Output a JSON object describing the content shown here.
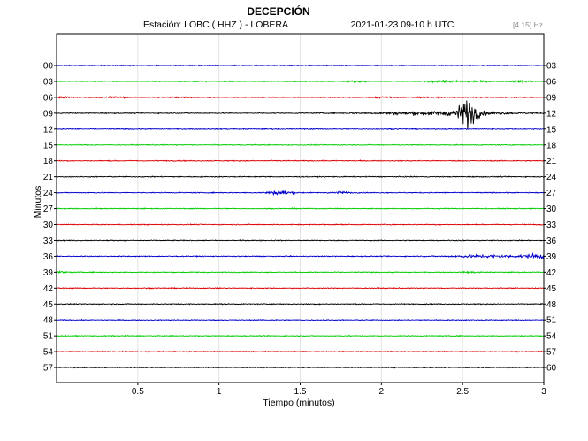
{
  "chart_data": {
    "type": "line",
    "title": "DECEPCIÓN",
    "subtitle_station": "Estación:  LOBC ( HHZ ) - LOBERA",
    "subtitle_date": "2021-01-23  09-10 h UTC",
    "filter_label": "[4 15] Hz",
    "xlabel": "Tiempo (minutos)",
    "ylabel": "Minutos",
    "xlim": [
      0,
      3
    ],
    "x_ticks": [
      "0.5",
      "1",
      "1.5",
      "2",
      "2.5",
      "3"
    ],
    "x_tick_values": [
      0.5,
      1,
      1.5,
      2,
      2.5,
      3
    ],
    "grid": true,
    "colors": [
      "#0000cc",
      "#00cc00",
      "#dd0000",
      "#000000"
    ],
    "traces": [
      {
        "left": "00",
        "right": "03"
      },
      {
        "left": "03",
        "right": "06"
      },
      {
        "left": "06",
        "right": "09"
      },
      {
        "left": "09",
        "right": "12"
      },
      {
        "left": "12",
        "right": "15"
      },
      {
        "left": "15",
        "right": "18"
      },
      {
        "left": "18",
        "right": "21"
      },
      {
        "left": "21",
        "right": "24"
      },
      {
        "left": "24",
        "right": "27"
      },
      {
        "left": "27",
        "right": "30"
      },
      {
        "left": "30",
        "right": "33"
      },
      {
        "left": "33",
        "right": "36"
      },
      {
        "left": "36",
        "right": "39"
      },
      {
        "left": "39",
        "right": "42"
      },
      {
        "left": "42",
        "right": "45"
      },
      {
        "left": "45",
        "right": "48"
      },
      {
        "left": "48",
        "right": "51"
      },
      {
        "left": "51",
        "right": "54"
      },
      {
        "left": "54",
        "right": "57"
      },
      {
        "left": "57",
        "right": "60"
      }
    ],
    "events": [
      {
        "trace": 1,
        "t": 1.85,
        "amp": 0.35,
        "dur": 0.04
      },
      {
        "trace": 1,
        "t": 2.35,
        "amp": 0.5,
        "dur": 0.05
      },
      {
        "trace": 1,
        "t": 2.45,
        "amp": 0.35,
        "dur": 0.04
      },
      {
        "trace": 1,
        "t": 2.58,
        "amp": 0.5,
        "dur": 0.05
      },
      {
        "trace": 1,
        "t": 2.85,
        "amp": 0.5,
        "dur": 0.05
      },
      {
        "trace": 2,
        "t": 0.03,
        "amp": 0.5,
        "dur": 0.05
      },
      {
        "trace": 2,
        "t": 0.35,
        "amp": 0.45,
        "dur": 0.05
      },
      {
        "trace": 2,
        "t": 0.75,
        "amp": 0.3,
        "dur": 0.05
      },
      {
        "trace": 2,
        "t": 2.0,
        "amp": 0.3,
        "dur": 0.05
      },
      {
        "trace": 2,
        "t": 2.2,
        "amp": 0.3,
        "dur": 0.05
      },
      {
        "trace": 3,
        "t": 2.4,
        "amp": 1.3,
        "dur": 0.25
      },
      {
        "trace": 3,
        "t": 2.53,
        "amp": 8.0,
        "dur": 0.04
      },
      {
        "trace": 8,
        "t": 1.38,
        "amp": 1.3,
        "dur": 0.05
      },
      {
        "trace": 8,
        "t": 1.75,
        "amp": 0.6,
        "dur": 0.04
      },
      {
        "trace": 12,
        "t": 2.65,
        "amp": 0.8,
        "dur": 0.15
      },
      {
        "trace": 12,
        "t": 2.97,
        "amp": 1.3,
        "dur": 0.06
      },
      {
        "trace": 13,
        "t": 0.02,
        "amp": 0.5,
        "dur": 0.04
      },
      {
        "trace": 13,
        "t": 2.55,
        "amp": 0.3,
        "dur": 0.04
      }
    ]
  }
}
